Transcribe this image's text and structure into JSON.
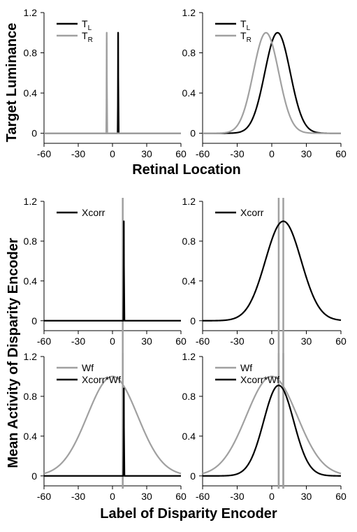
{
  "labels": {
    "top_ylabel": "Target Luminance",
    "top_xlabel": "Retinal Location",
    "bottom_ylabel": "Mean Activity of Disparity Encoder",
    "bottom_xlabel": "Label of Disparity Encoder"
  },
  "colors": {
    "black": "#000000",
    "gray": "#a0a0a0"
  },
  "chart_data": [
    {
      "type": "line",
      "panel": "top-left",
      "xlim": [
        -60,
        60
      ],
      "ylim": [
        -0.1,
        1.2
      ],
      "xticks": [
        "-60",
        "-30",
        "0",
        "30",
        "60"
      ],
      "yticks": [
        "0",
        "0.4",
        "0.8",
        "1.2"
      ],
      "legend": [
        {
          "label": "T",
          "sub": "L",
          "color": "#000000"
        },
        {
          "label": "T",
          "sub": "R",
          "color": "#a0a0a0"
        }
      ],
      "series": [
        {
          "name": "TL",
          "color": "#000000",
          "curve": "spike",
          "mu": 5,
          "sigma": 0.5,
          "amp": 1.0
        },
        {
          "name": "TR",
          "color": "#a0a0a0",
          "curve": "spike",
          "mu": -5,
          "sigma": 0.5,
          "amp": 1.0
        }
      ]
    },
    {
      "type": "line",
      "panel": "top-right",
      "xlim": [
        -60,
        60
      ],
      "ylim": [
        -0.1,
        1.2
      ],
      "xticks": [
        "-60",
        "-30",
        "0",
        "30",
        "60"
      ],
      "yticks": [
        "0",
        "0.4",
        "0.8",
        "1.2"
      ],
      "legend": [
        {
          "label": "T",
          "sub": "L",
          "color": "#000000"
        },
        {
          "label": "T",
          "sub": "R",
          "color": "#a0a0a0"
        }
      ],
      "series": [
        {
          "name": "TL",
          "color": "#000000",
          "curve": "gauss",
          "mu": 5,
          "sigma": 11,
          "amp": 1.0
        },
        {
          "name": "TR",
          "color": "#a0a0a0",
          "curve": "gauss",
          "mu": -5,
          "sigma": 11,
          "amp": 1.0
        }
      ]
    },
    {
      "type": "line",
      "panel": "middle-left",
      "xlim": [
        -60,
        60
      ],
      "ylim": [
        -0.1,
        1.2
      ],
      "xticks": [
        "-60",
        "-30",
        "0",
        "30",
        "60"
      ],
      "yticks": [
        "0",
        "0.4",
        "0.8",
        "1.2"
      ],
      "legend": [
        {
          "label": "Xcorr",
          "color": "#000000"
        }
      ],
      "series": [
        {
          "name": "Xcorr",
          "color": "#000000",
          "curve": "spike",
          "mu": 10,
          "sigma": 0.5,
          "amp": 1.0
        }
      ],
      "vlines": [
        {
          "x": 9,
          "color": "#a0a0a0",
          "extend_below": true
        }
      ]
    },
    {
      "type": "line",
      "panel": "middle-right",
      "xlim": [
        -60,
        60
      ],
      "ylim": [
        -0.1,
        1.2
      ],
      "xticks": [
        "-60",
        "-30",
        "0",
        "30",
        "60"
      ],
      "yticks": [
        "0",
        "0.4",
        "0.8",
        "1.2"
      ],
      "legend": [
        {
          "label": "Xcorr",
          "color": "#000000"
        }
      ],
      "series": [
        {
          "name": "Xcorr",
          "color": "#000000",
          "curve": "gauss",
          "mu": 10,
          "sigma": 15.5,
          "amp": 1.0
        }
      ],
      "vlines": [
        {
          "x": 6,
          "color": "#a0a0a0",
          "extend_below": true
        },
        {
          "x": 10,
          "color": "#a0a0a0",
          "extend_below": true
        }
      ]
    },
    {
      "type": "line",
      "panel": "bottom-left",
      "xlim": [
        -60,
        60
      ],
      "ylim": [
        -0.1,
        1.2
      ],
      "xticks": [
        "-60",
        "-30",
        "0",
        "30",
        "60"
      ],
      "yticks": [
        "0",
        "0.4",
        "0.8",
        "1.2"
      ],
      "legend": [
        {
          "label": "Wf",
          "color": "#a0a0a0"
        },
        {
          "label": "Xcorr*Wf",
          "color": "#000000"
        }
      ],
      "series": [
        {
          "name": "Wf",
          "color": "#a0a0a0",
          "curve": "gauss",
          "mu": 0,
          "sigma": 22,
          "amp": 1.0
        },
        {
          "name": "Xcorr*Wf",
          "color": "#000000",
          "curve": "spike",
          "mu": 10,
          "sigma": 0.5,
          "amp": 0.88
        }
      ],
      "vlines": [
        {
          "x": 9,
          "color": "#a0a0a0",
          "extend_below": false
        }
      ]
    },
    {
      "type": "line",
      "panel": "bottom-right",
      "xlim": [
        -60,
        60
      ],
      "ylim": [
        -0.1,
        1.2
      ],
      "xticks": [
        "-60",
        "-30",
        "0",
        "30",
        "60"
      ],
      "yticks": [
        "0",
        "0.4",
        "0.8",
        "1.2"
      ],
      "legend": [
        {
          "label": "Wf",
          "color": "#a0a0a0"
        },
        {
          "label": "Xcorr*Wf",
          "color": "#000000"
        }
      ],
      "series": [
        {
          "name": "Wf",
          "color": "#a0a0a0",
          "curve": "gauss",
          "mu": 0,
          "sigma": 22,
          "amp": 1.0
        },
        {
          "name": "Xcorr*Wf",
          "color": "#000000",
          "curve": "gauss",
          "mu": 6,
          "sigma": 13,
          "amp": 0.91
        }
      ],
      "vlines": [
        {
          "x": 6,
          "color": "#a0a0a0",
          "extend_below": false
        },
        {
          "x": 10,
          "color": "#a0a0a0",
          "extend_below": false
        }
      ]
    }
  ]
}
